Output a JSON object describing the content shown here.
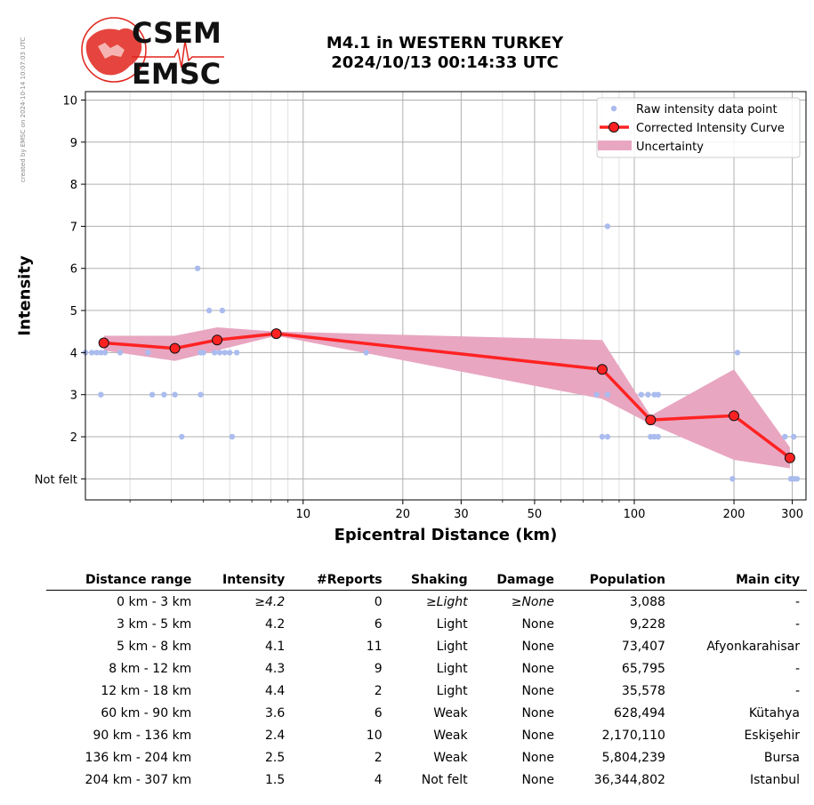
{
  "side_note": "created by EMSC on 2024-10-14 10:07:03 UTC",
  "logo": {
    "line1": "CSEM",
    "line2": "EMSC"
  },
  "title": {
    "line1": "M4.1 in WESTERN TURKEY",
    "line2": "2024/10/13 00:14:33 UTC"
  },
  "colors": {
    "raw": "#aabbee",
    "curve": "#ff2222",
    "uncertainty": "#e8a6c1",
    "logo_red": "#e0251c"
  },
  "chart_data": {
    "type": "line",
    "x_scale": "log",
    "xlim": [
      2.2,
      330
    ],
    "ylim": [
      0.5,
      10.2
    ],
    "xlabel": "Epicentral Distance (km)",
    "ylabel": "Intensity",
    "x_ticks": [
      10,
      20,
      30,
      50,
      100,
      200,
      300
    ],
    "y_ticks": [
      1,
      2,
      3,
      4,
      5,
      6,
      7,
      8,
      9,
      10
    ],
    "y_tick_labels": [
      "Not felt",
      "2",
      "3",
      "4",
      "5",
      "6",
      "7",
      "8",
      "9",
      "10"
    ],
    "grid": true,
    "legend_position": "top-right",
    "legend": [
      "Raw intensity data point",
      "Corrected Intensity Curve",
      "Uncertainty"
    ],
    "corrected_curve": {
      "x": [
        2.5,
        4.1,
        5.5,
        8.3,
        80,
        112,
        200,
        295
      ],
      "y": [
        4.23,
        4.1,
        4.3,
        4.45,
        3.6,
        2.4,
        2.5,
        1.5
      ]
    },
    "uncertainty": {
      "x": [
        2.5,
        4.1,
        5.5,
        8.3,
        80,
        112,
        200,
        295
      ],
      "upper": [
        4.4,
        4.4,
        4.6,
        4.5,
        4.3,
        2.5,
        3.6,
        1.75
      ],
      "lower": [
        4.05,
        3.8,
        4.05,
        4.4,
        2.9,
        2.3,
        1.45,
        1.25
      ]
    },
    "raw_points": [
      [
        2.2,
        4
      ],
      [
        2.3,
        4
      ],
      [
        2.38,
        4
      ],
      [
        2.45,
        4
      ],
      [
        2.52,
        4
      ],
      [
        2.8,
        4
      ],
      [
        3.4,
        4
      ],
      [
        4.9,
        4
      ],
      [
        5.0,
        4
      ],
      [
        5.4,
        4
      ],
      [
        5.6,
        4
      ],
      [
        5.8,
        4
      ],
      [
        6.0,
        4
      ],
      [
        6.3,
        4
      ],
      [
        15.5,
        4
      ],
      [
        205,
        4
      ],
      [
        2.45,
        3
      ],
      [
        3.5,
        3
      ],
      [
        3.8,
        3
      ],
      [
        4.1,
        3
      ],
      [
        4.9,
        3
      ],
      [
        77,
        3
      ],
      [
        83,
        3
      ],
      [
        105,
        3
      ],
      [
        110,
        3
      ],
      [
        115,
        3
      ],
      [
        118,
        3
      ],
      [
        4.3,
        2
      ],
      [
        6.1,
        2
      ],
      [
        80,
        2
      ],
      [
        83,
        2
      ],
      [
        112,
        2
      ],
      [
        115,
        2
      ],
      [
        118,
        2
      ],
      [
        285,
        2
      ],
      [
        303,
        2
      ],
      [
        4.8,
        6
      ],
      [
        5.2,
        5
      ],
      [
        5.7,
        5
      ],
      [
        83,
        7
      ],
      [
        198,
        1
      ],
      [
        297,
        1
      ],
      [
        303,
        1
      ],
      [
        310,
        1
      ]
    ]
  },
  "table": {
    "headers": [
      "Distance range",
      "Intensity",
      "#Reports",
      "Shaking",
      "Damage",
      "Population",
      "Main city"
    ],
    "rows": [
      [
        "0 km -    3 km",
        "≥4.2",
        "0",
        "≥Light",
        "≥None",
        "3,088",
        "-"
      ],
      [
        "3 km -    5 km",
        "4.2",
        "6",
        "Light",
        "None",
        "9,228",
        "-"
      ],
      [
        "5 km -    8 km",
        "4.1",
        "11",
        "Light",
        "None",
        "73,407",
        "Afyonkarahisar"
      ],
      [
        "8 km -   12 km",
        "4.3",
        "9",
        "Light",
        "None",
        "65,795",
        "-"
      ],
      [
        "12 km -   18 km",
        "4.4",
        "2",
        "Light",
        "None",
        "35,578",
        "-"
      ],
      [
        "60 km -   90 km",
        "3.6",
        "6",
        "Weak",
        "None",
        "628,494",
        "Kütahya"
      ],
      [
        "90 km -  136 km",
        "2.4",
        "10",
        "Weak",
        "None",
        "2,170,110",
        "Eskişehir"
      ],
      [
        "136 km -  204 km",
        "2.5",
        "2",
        "Weak",
        "None",
        "5,804,239",
        "Bursa"
      ],
      [
        "204 km -  307 km",
        "1.5",
        "4",
        "Not felt",
        "None",
        "36,344,802",
        "Istanbul"
      ]
    ]
  }
}
